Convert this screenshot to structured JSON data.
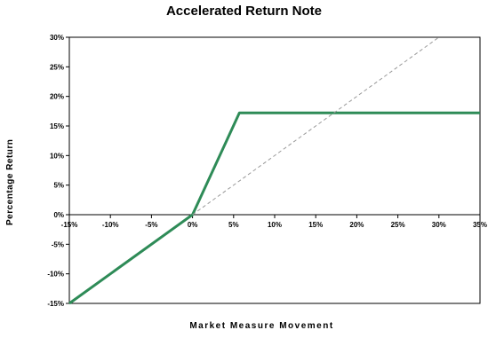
{
  "chart_data": {
    "type": "line",
    "title": "Accelerated Return Note",
    "xlabel": "Market Measure Movement",
    "ylabel": "Percentage Return",
    "xlim": [
      -15,
      35
    ],
    "ylim": [
      -15,
      30
    ],
    "x_ticks": [
      -15,
      -10,
      -5,
      0,
      5,
      10,
      15,
      20,
      25,
      30,
      35
    ],
    "y_ticks": [
      -15,
      -10,
      -5,
      0,
      5,
      10,
      15,
      20,
      25,
      30
    ],
    "x_tick_labels": [
      "-15%",
      "-10%",
      "-5%",
      "0%",
      "5%",
      "10%",
      "15%",
      "20%",
      "25%",
      "30%",
      "35%"
    ],
    "y_tick_labels": [
      "-15%",
      "-10%",
      "-5%",
      "0%",
      "5%",
      "10%",
      "15%",
      "20%",
      "25%",
      "30%"
    ],
    "grid": false,
    "series": [
      {
        "color": "#2e8b57",
        "style": "solid",
        "x": [
          -15,
          0,
          5.7,
          35
        ],
        "y": [
          -15,
          0,
          17.2,
          17.2
        ]
      },
      {
        "color": "#999999",
        "style": "dashed",
        "x": [
          0,
          30
        ],
        "y": [
          0,
          30
        ]
      }
    ]
  }
}
